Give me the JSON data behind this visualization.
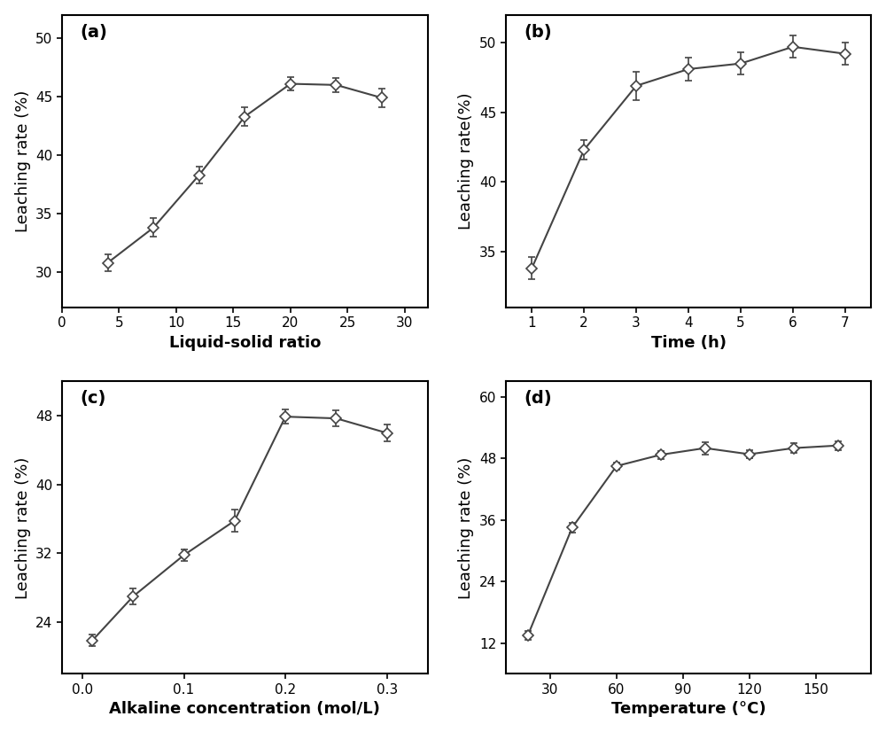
{
  "subplot_a": {
    "x": [
      4,
      8,
      12,
      16,
      20,
      24,
      28
    ],
    "y": [
      30.8,
      33.8,
      38.3,
      43.3,
      46.1,
      46.0,
      44.9
    ],
    "yerr": [
      0.7,
      0.8,
      0.7,
      0.8,
      0.6,
      0.6,
      0.8
    ],
    "xlabel": "Liquid-solid ratio",
    "ylabel": "Leaching rate (%)",
    "label": "(a)",
    "xlim": [
      0,
      32
    ],
    "xticks": [
      0,
      5,
      10,
      15,
      20,
      25,
      30
    ],
    "ylim": [
      27,
      52
    ],
    "yticks": [
      30,
      35,
      40,
      45,
      50
    ]
  },
  "subplot_b": {
    "x": [
      1,
      2,
      3,
      4,
      5,
      6,
      7
    ],
    "y": [
      33.8,
      42.3,
      46.9,
      48.1,
      48.5,
      49.7,
      49.2
    ],
    "yerr": [
      0.8,
      0.7,
      1.0,
      0.8,
      0.8,
      0.8,
      0.8
    ],
    "xlabel": "Time (h)",
    "ylabel": "Leaching rate(%)",
    "label": "(b)",
    "xlim": [
      0.5,
      7.5
    ],
    "xticks": [
      1,
      2,
      3,
      4,
      5,
      6,
      7
    ],
    "ylim": [
      31,
      52
    ],
    "yticks": [
      35,
      40,
      45,
      50
    ]
  },
  "subplot_c": {
    "x": [
      0.01,
      0.05,
      0.1,
      0.15,
      0.2,
      0.25,
      0.3
    ],
    "y": [
      21.9,
      27.0,
      31.8,
      35.8,
      47.9,
      47.7,
      46.0
    ],
    "yerr": [
      0.7,
      0.9,
      0.7,
      1.3,
      0.8,
      0.9,
      1.0
    ],
    "xlabel": "Alkaline concentration (mol/L)",
    "ylabel": "Leaching rate (%)",
    "label": "(c)",
    "xlim": [
      -0.02,
      0.34
    ],
    "xticks": [
      0.0,
      0.1,
      0.2,
      0.3
    ],
    "ylim": [
      18,
      52
    ],
    "yticks": [
      24,
      32,
      40,
      48
    ]
  },
  "subplot_d": {
    "x": [
      20,
      40,
      60,
      80,
      100,
      120,
      140,
      160
    ],
    "y": [
      13.5,
      34.5,
      46.5,
      48.7,
      50.0,
      48.8,
      50.0,
      50.5
    ],
    "yerr": [
      0.8,
      1.0,
      0.7,
      0.8,
      1.2,
      0.8,
      1.0,
      0.9
    ],
    "xlabel": "Temperature (°C)",
    "ylabel": "Leaching rate (%)",
    "label": "(d)",
    "xlim": [
      10,
      175
    ],
    "xticks": [
      30,
      60,
      90,
      120,
      150
    ],
    "ylim": [
      6,
      63
    ],
    "yticks": [
      12,
      24,
      36,
      48,
      60
    ]
  },
  "line_color": "#444444",
  "marker": "D",
  "marker_size": 6,
  "marker_facecolor": "white",
  "marker_edgecolor": "#444444",
  "capsize": 3,
  "elinewidth": 1.2,
  "linewidth": 1.5,
  "label_fontsize": 13,
  "tick_fontsize": 11,
  "panel_label_fontsize": 14,
  "background_color": "#ffffff"
}
